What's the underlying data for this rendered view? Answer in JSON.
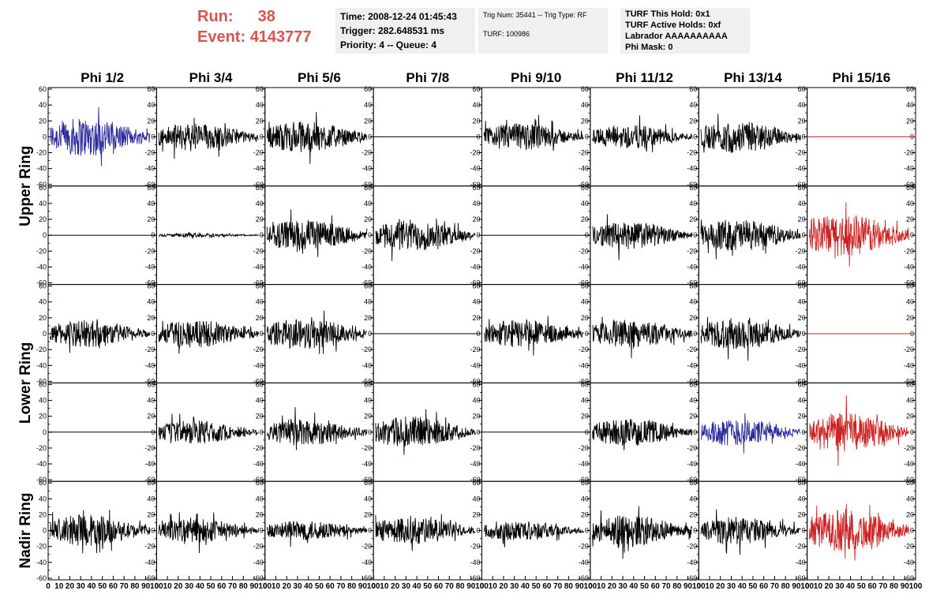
{
  "header": {
    "run_label": "Run:",
    "run_value": "38",
    "event_label": "Event:",
    "event_value": "4143777",
    "time_panel": [
      "Time: 2008-12-24 01:45:43",
      "Trigger: 282.648531 ms",
      "Priority: 4 -- Queue: 4"
    ],
    "trig_panel": [
      "Trig Num: 35441 -- Trig Type: RF",
      "",
      "TURF: 100986"
    ],
    "turf_panel": [
      "TURF This Hold: 0x1",
      "TURF Active Holds: 0xf",
      "Labrador AAAAAAAAAA",
      "Phi Mask: 0"
    ]
  },
  "chart_data": {
    "type": "line",
    "title": "",
    "columns": [
      "Phi 1/2",
      "Phi 3/4",
      "Phi 5/6",
      "Phi 7/8",
      "Phi 9/10",
      "Phi 11/12",
      "Phi 13/14",
      "Phi 15/16"
    ],
    "ring_labels": [
      "Upper Ring",
      "Lower Ring",
      "Nadir Ring"
    ],
    "rows": 5,
    "xlim": [
      0,
      100
    ],
    "ylim": [
      -60,
      60
    ],
    "x_ticks": [
      0,
      10,
      20,
      30,
      40,
      50,
      60,
      70,
      80,
      90,
      100
    ],
    "y_ticks": [
      -60,
      -40,
      -20,
      0,
      20,
      40,
      60
    ],
    "colors": {
      "black": "#000000",
      "blue": "#2b2b9c",
      "red": "#cc2222"
    },
    "cells": [
      [
        {
          "color": "blue",
          "amplitude": 20,
          "trace": "noise"
        },
        {
          "color": "black",
          "amplitude": 14,
          "trace": "noise"
        },
        {
          "color": "black",
          "amplitude": 16,
          "trace": "noise"
        },
        {
          "color": "black",
          "amplitude": 0,
          "trace": "flat"
        },
        {
          "color": "black",
          "amplitude": 14,
          "trace": "noise"
        },
        {
          "color": "black",
          "amplitude": 12,
          "trace": "noise"
        },
        {
          "color": "black",
          "amplitude": 16,
          "trace": "noise"
        },
        {
          "color": "red",
          "amplitude": 0,
          "trace": "flat"
        }
      ],
      [
        {
          "color": "black",
          "amplitude": 0,
          "trace": "flat"
        },
        {
          "color": "black",
          "amplitude": 2,
          "trace": "noise"
        },
        {
          "color": "black",
          "amplitude": 16,
          "trace": "noise"
        },
        {
          "color": "black",
          "amplitude": 16,
          "trace": "noise"
        },
        {
          "color": "black",
          "amplitude": 0,
          "trace": "flat"
        },
        {
          "color": "black",
          "amplitude": 14,
          "trace": "noise"
        },
        {
          "color": "black",
          "amplitude": 16,
          "trace": "noise"
        },
        {
          "color": "red",
          "amplitude": 22,
          "trace": "noise"
        }
      ],
      [
        {
          "color": "black",
          "amplitude": 14,
          "trace": "noise"
        },
        {
          "color": "black",
          "amplitude": 14,
          "trace": "noise"
        },
        {
          "color": "black",
          "amplitude": 16,
          "trace": "noise"
        },
        {
          "color": "black",
          "amplitude": 0,
          "trace": "flat"
        },
        {
          "color": "black",
          "amplitude": 14,
          "trace": "noise"
        },
        {
          "color": "black",
          "amplitude": 14,
          "trace": "noise"
        },
        {
          "color": "black",
          "amplitude": 16,
          "trace": "noise"
        },
        {
          "color": "red",
          "amplitude": 0,
          "trace": "flat"
        }
      ],
      [
        {
          "color": "black",
          "amplitude": 0,
          "trace": "flat"
        },
        {
          "color": "black",
          "amplitude": 12,
          "trace": "noise"
        },
        {
          "color": "black",
          "amplitude": 14,
          "trace": "noise"
        },
        {
          "color": "black",
          "amplitude": 16,
          "trace": "noise"
        },
        {
          "color": "black",
          "amplitude": 0,
          "trace": "flat"
        },
        {
          "color": "black",
          "amplitude": 14,
          "trace": "noise"
        },
        {
          "color": "blue",
          "amplitude": 14,
          "trace": "noise"
        },
        {
          "color": "red",
          "amplitude": 20,
          "trace": "noise"
        }
      ],
      [
        {
          "color": "black",
          "amplitude": 16,
          "trace": "noise"
        },
        {
          "color": "black",
          "amplitude": 12,
          "trace": "noise"
        },
        {
          "color": "black",
          "amplitude": 10,
          "trace": "noise"
        },
        {
          "color": "black",
          "amplitude": 14,
          "trace": "noise"
        },
        {
          "color": "black",
          "amplitude": 10,
          "trace": "noise"
        },
        {
          "color": "black",
          "amplitude": 16,
          "trace": "noise"
        },
        {
          "color": "black",
          "amplitude": 14,
          "trace": "noise"
        },
        {
          "color": "red",
          "amplitude": 22,
          "trace": "noise"
        }
      ]
    ]
  }
}
